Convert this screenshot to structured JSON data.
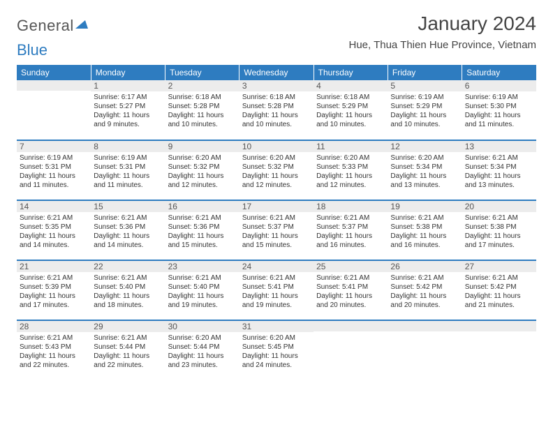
{
  "logo": {
    "word1": "General",
    "word2": "Blue"
  },
  "title": "January 2024",
  "location": "Hue, Thua Thien Hue Province, Vietnam",
  "colors": {
    "accent": "#2e7cc0",
    "header_bg": "#2e7cc0",
    "header_text": "#ffffff",
    "daybar_bg": "#ececec",
    "text": "#333333",
    "rule": "#2e7cc0"
  },
  "typography": {
    "title_size": 28,
    "location_size": 15,
    "dayhead_size": 12,
    "daynum_size": 12,
    "info_size": 10
  },
  "weekdays": [
    "Sunday",
    "Monday",
    "Tuesday",
    "Wednesday",
    "Thursday",
    "Friday",
    "Saturday"
  ],
  "weeks": [
    [
      null,
      {
        "n": "1",
        "sr": "6:17 AM",
        "ss": "5:27 PM",
        "dl": "11 hours and 9 minutes."
      },
      {
        "n": "2",
        "sr": "6:18 AM",
        "ss": "5:28 PM",
        "dl": "11 hours and 10 minutes."
      },
      {
        "n": "3",
        "sr": "6:18 AM",
        "ss": "5:28 PM",
        "dl": "11 hours and 10 minutes."
      },
      {
        "n": "4",
        "sr": "6:18 AM",
        "ss": "5:29 PM",
        "dl": "11 hours and 10 minutes."
      },
      {
        "n": "5",
        "sr": "6:19 AM",
        "ss": "5:29 PM",
        "dl": "11 hours and 10 minutes."
      },
      {
        "n": "6",
        "sr": "6:19 AM",
        "ss": "5:30 PM",
        "dl": "11 hours and 11 minutes."
      }
    ],
    [
      {
        "n": "7",
        "sr": "6:19 AM",
        "ss": "5:31 PM",
        "dl": "11 hours and 11 minutes."
      },
      {
        "n": "8",
        "sr": "6:19 AM",
        "ss": "5:31 PM",
        "dl": "11 hours and 11 minutes."
      },
      {
        "n": "9",
        "sr": "6:20 AM",
        "ss": "5:32 PM",
        "dl": "11 hours and 12 minutes."
      },
      {
        "n": "10",
        "sr": "6:20 AM",
        "ss": "5:32 PM",
        "dl": "11 hours and 12 minutes."
      },
      {
        "n": "11",
        "sr": "6:20 AM",
        "ss": "5:33 PM",
        "dl": "11 hours and 12 minutes."
      },
      {
        "n": "12",
        "sr": "6:20 AM",
        "ss": "5:34 PM",
        "dl": "11 hours and 13 minutes."
      },
      {
        "n": "13",
        "sr": "6:21 AM",
        "ss": "5:34 PM",
        "dl": "11 hours and 13 minutes."
      }
    ],
    [
      {
        "n": "14",
        "sr": "6:21 AM",
        "ss": "5:35 PM",
        "dl": "11 hours and 14 minutes."
      },
      {
        "n": "15",
        "sr": "6:21 AM",
        "ss": "5:36 PM",
        "dl": "11 hours and 14 minutes."
      },
      {
        "n": "16",
        "sr": "6:21 AM",
        "ss": "5:36 PM",
        "dl": "11 hours and 15 minutes."
      },
      {
        "n": "17",
        "sr": "6:21 AM",
        "ss": "5:37 PM",
        "dl": "11 hours and 15 minutes."
      },
      {
        "n": "18",
        "sr": "6:21 AM",
        "ss": "5:37 PM",
        "dl": "11 hours and 16 minutes."
      },
      {
        "n": "19",
        "sr": "6:21 AM",
        "ss": "5:38 PM",
        "dl": "11 hours and 16 minutes."
      },
      {
        "n": "20",
        "sr": "6:21 AM",
        "ss": "5:38 PM",
        "dl": "11 hours and 17 minutes."
      }
    ],
    [
      {
        "n": "21",
        "sr": "6:21 AM",
        "ss": "5:39 PM",
        "dl": "11 hours and 17 minutes."
      },
      {
        "n": "22",
        "sr": "6:21 AM",
        "ss": "5:40 PM",
        "dl": "11 hours and 18 minutes."
      },
      {
        "n": "23",
        "sr": "6:21 AM",
        "ss": "5:40 PM",
        "dl": "11 hours and 19 minutes."
      },
      {
        "n": "24",
        "sr": "6:21 AM",
        "ss": "5:41 PM",
        "dl": "11 hours and 19 minutes."
      },
      {
        "n": "25",
        "sr": "6:21 AM",
        "ss": "5:41 PM",
        "dl": "11 hours and 20 minutes."
      },
      {
        "n": "26",
        "sr": "6:21 AM",
        "ss": "5:42 PM",
        "dl": "11 hours and 20 minutes."
      },
      {
        "n": "27",
        "sr": "6:21 AM",
        "ss": "5:42 PM",
        "dl": "11 hours and 21 minutes."
      }
    ],
    [
      {
        "n": "28",
        "sr": "6:21 AM",
        "ss": "5:43 PM",
        "dl": "11 hours and 22 minutes."
      },
      {
        "n": "29",
        "sr": "6:21 AM",
        "ss": "5:44 PM",
        "dl": "11 hours and 22 minutes."
      },
      {
        "n": "30",
        "sr": "6:20 AM",
        "ss": "5:44 PM",
        "dl": "11 hours and 23 minutes."
      },
      {
        "n": "31",
        "sr": "6:20 AM",
        "ss": "5:45 PM",
        "dl": "11 hours and 24 minutes."
      },
      null,
      null,
      null
    ]
  ],
  "labels": {
    "sunrise": "Sunrise:",
    "sunset": "Sunset:",
    "daylight": "Daylight:"
  }
}
